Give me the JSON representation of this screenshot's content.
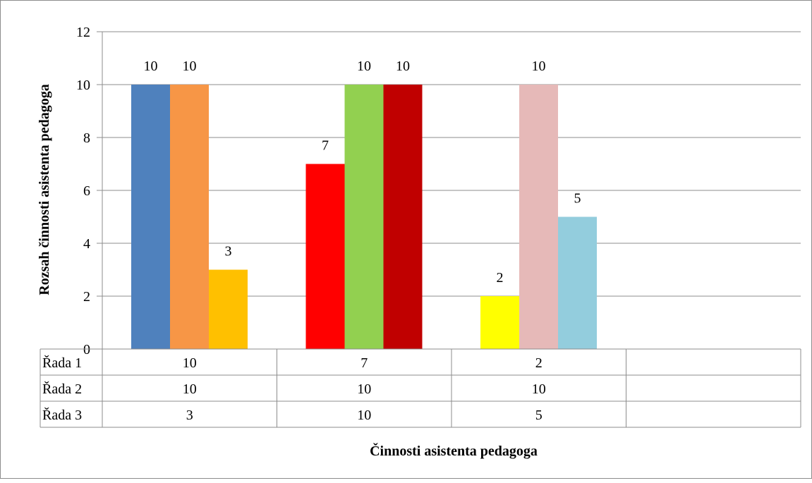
{
  "chart_data": {
    "type": "bar",
    "title": "",
    "xlabel": "Činnosti asistenta pedagoga",
    "ylabel": "Rozsah činnosti asistenta pedagoga",
    "ylim": [
      0,
      12
    ],
    "yticks": [
      "0",
      "2",
      "4",
      "6",
      "8",
      "10",
      "12"
    ],
    "grid": true,
    "legend": "data-table-below",
    "categories": [
      "",
      "",
      "",
      ""
    ],
    "series": [
      {
        "name": "Řada 1",
        "values": [
          10,
          7,
          2,
          null
        ],
        "colors": [
          "#4f81bd",
          "#ff0000",
          "#ffff00"
        ]
      },
      {
        "name": "Řada 2",
        "values": [
          10,
          10,
          10,
          null
        ],
        "colors": [
          "#f79646",
          "#92d050",
          "#e6b9b8"
        ]
      },
      {
        "name": "Řada 3",
        "values": [
          3,
          10,
          5,
          null
        ],
        "colors": [
          "#ffc000",
          "#c00000",
          "#93cddd"
        ]
      }
    ],
    "data_labels": true,
    "table_values": [
      [
        "10",
        "7",
        "2",
        ""
      ],
      [
        "10",
        "10",
        "10",
        ""
      ],
      [
        "3",
        "10",
        "5",
        ""
      ]
    ]
  }
}
